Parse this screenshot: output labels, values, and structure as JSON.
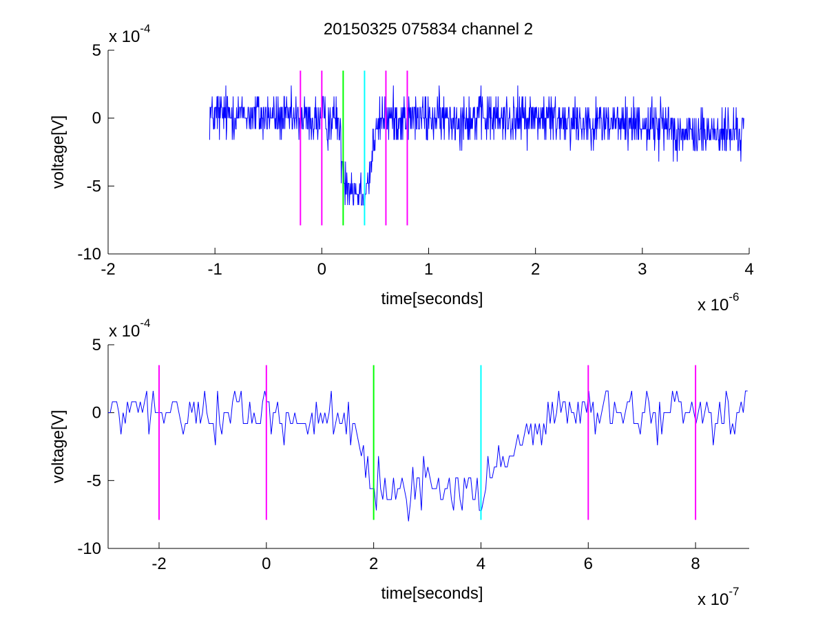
{
  "chart_data": [
    {
      "type": "line",
      "title": "20150325 075834 channel 2",
      "xlabel": "time[seconds]",
      "ylabel": "voltage[V]",
      "x_multiplier": {
        "base": "x 10",
        "exponent": "-6"
      },
      "y_multiplier": {
        "base": "x 10",
        "exponent": "-4"
      },
      "xlim": [
        -2e-06,
        4e-06
      ],
      "ylim": [
        -0.001,
        0.0005
      ],
      "x_ticks": [
        -2,
        -1,
        0,
        1,
        2,
        3,
        4
      ],
      "x_tick_labels": [
        "-2",
        "-1",
        "0",
        "1",
        "2",
        "3",
        "4"
      ],
      "y_ticks": [
        -10,
        -5,
        0,
        5
      ],
      "y_tick_labels": [
        "-10",
        "-5",
        "0",
        "5"
      ],
      "grid": false,
      "series": [
        {
          "color": "#0000ff",
          "trace_keypoints_x": [
            -1.05e-06,
            -8.2e-07,
            -3e-07,
            -5e-08,
            1.5e-07,
            1.8e-07,
            2.2e-07,
            3e-07,
            4e-07,
            4.5e-07,
            4.8e-07,
            5.5e-07,
            2e-06,
            3.3e-06,
            3.4e-06,
            3.95e-06
          ],
          "trace_keypoints_y": [
            2e-05,
            3e-05,
            0.0,
            -3e-05,
            0.0,
            -0.00025,
            -0.00045,
            -0.00052,
            -0.00054,
            -0.0004,
            -0.0002,
            0.0,
            0.0,
            -6e-05,
            -0.00012,
            -0.0001
          ],
          "noise_amplitude": 9e-05,
          "sample_step": 4e-09
        }
      ],
      "markers": [
        {
          "x": -2e-07,
          "y_range": [
            -0.00079,
            0.00035
          ],
          "color": "#ff00ff"
        },
        {
          "x": 0.0,
          "y_range": [
            -0.00079,
            0.00035
          ],
          "color": "#ff00ff"
        },
        {
          "x": 2e-07,
          "y_range": [
            -0.00079,
            0.00035
          ],
          "color": "#00ff00"
        },
        {
          "x": 4e-07,
          "y_range": [
            -0.00079,
            0.00035
          ],
          "color": "#00ffff"
        },
        {
          "x": 6e-07,
          "y_range": [
            -0.00079,
            0.00035
          ],
          "color": "#ff00ff"
        },
        {
          "x": 8e-07,
          "y_range": [
            -0.00079,
            0.00035
          ],
          "color": "#ff00ff"
        }
      ]
    },
    {
      "type": "line",
      "title": "",
      "xlabel": "time[seconds]",
      "ylabel": "voltage[V]",
      "x_multiplier": {
        "base": "x 10",
        "exponent": "-7"
      },
      "y_multiplier": {
        "base": "x 10",
        "exponent": "-4"
      },
      "xlim": [
        -2.95e-07,
        9e-07
      ],
      "ylim": [
        -0.001,
        0.0005
      ],
      "x_ticks": [
        -2,
        0,
        2,
        4,
        6,
        8
      ],
      "x_tick_labels": [
        "-2",
        "0",
        "2",
        "4",
        "6",
        "8"
      ],
      "y_ticks": [
        -10,
        -5,
        0,
        5
      ],
      "y_tick_labels": [
        "-10",
        "-5",
        "0",
        "5"
      ],
      "grid": false,
      "series": [
        {
          "color": "#0000ff",
          "trace_keypoints_x": [
            -2.95e-07,
            -5e-08,
            1.2e-07,
            1.6e-07,
            1.8e-07,
            2e-07,
            3e-07,
            3.9e-07,
            4.1e-07,
            4.4e-07,
            4.9e-07,
            5.6e-07,
            9e-07
          ],
          "trace_keypoints_y": [
            0.0,
            0.0,
            -5e-05,
            -0.0002,
            -0.00043,
            -0.00052,
            -0.00053,
            -0.00058,
            -0.00056,
            -0.00035,
            -0.00012,
            0.0,
            0.0
          ],
          "noise_amplitude": 9e-05,
          "sample_step": 4e-09
        }
      ],
      "markers": [
        {
          "x": -2e-07,
          "y_range": [
            -0.00079,
            0.00035
          ],
          "color": "#ff00ff"
        },
        {
          "x": 0.0,
          "y_range": [
            -0.00079,
            0.00035
          ],
          "color": "#ff00ff"
        },
        {
          "x": 2e-07,
          "y_range": [
            -0.00079,
            0.00035
          ],
          "color": "#00ff00"
        },
        {
          "x": 4e-07,
          "y_range": [
            -0.00079,
            0.00035
          ],
          "color": "#00ffff"
        },
        {
          "x": 6e-07,
          "y_range": [
            -0.00079,
            0.00035
          ],
          "color": "#ff00ff"
        },
        {
          "x": 8e-07,
          "y_range": [
            -0.00079,
            0.00035
          ],
          "color": "#ff00ff"
        }
      ]
    }
  ]
}
